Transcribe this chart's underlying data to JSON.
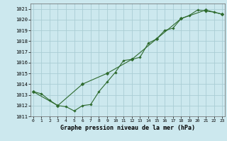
{
  "xlabel": "Graphe pression niveau de la mer (hPa)",
  "bg_color": "#cce8ee",
  "grid_color": "#aacdd4",
  "line_color": "#2d6a2d",
  "ylim": [
    1011,
    1021.5
  ],
  "xlim": [
    -0.3,
    23.3
  ],
  "yticks": [
    1011,
    1012,
    1013,
    1014,
    1015,
    1016,
    1017,
    1018,
    1019,
    1020,
    1021
  ],
  "xticks": [
    0,
    1,
    2,
    3,
    4,
    5,
    6,
    7,
    8,
    9,
    10,
    11,
    12,
    13,
    14,
    15,
    16,
    17,
    18,
    19,
    20,
    21,
    22,
    23
  ],
  "series1_x": [
    0,
    1,
    2,
    3,
    4,
    5,
    6,
    7,
    8,
    9,
    10,
    11,
    12,
    13,
    14,
    15,
    16,
    17,
    18,
    19,
    20,
    21,
    22,
    23
  ],
  "series1_y": [
    1013.3,
    1013.1,
    1012.5,
    1012.0,
    1011.9,
    1011.5,
    1012.0,
    1012.1,
    1013.3,
    1014.2,
    1015.1,
    1016.2,
    1016.3,
    1016.5,
    1017.8,
    1018.2,
    1019.0,
    1019.2,
    1020.1,
    1020.4,
    1020.9,
    1020.8,
    1020.7,
    1020.5
  ],
  "series2_x": [
    0,
    3,
    6,
    9,
    12,
    15,
    18,
    21,
    23
  ],
  "series2_y": [
    1013.3,
    1012.0,
    1014.0,
    1015.0,
    1016.3,
    1018.2,
    1020.1,
    1020.9,
    1020.5
  ]
}
